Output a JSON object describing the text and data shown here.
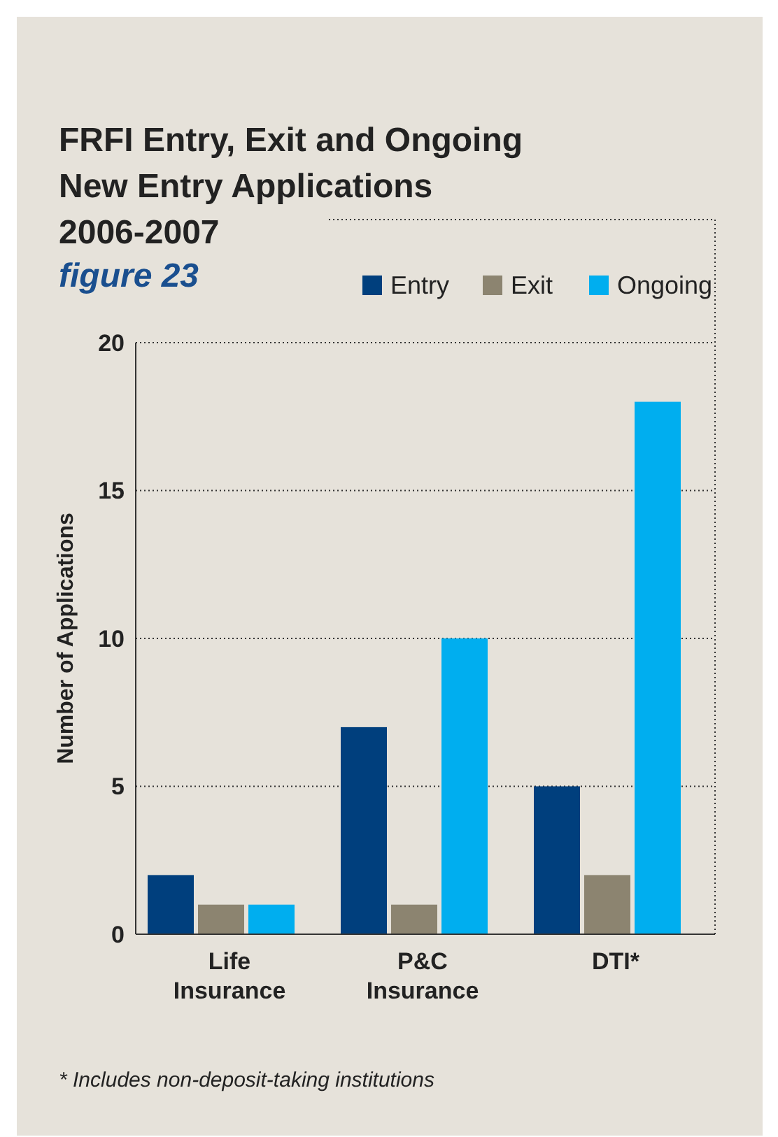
{
  "chart_data": {
    "type": "bar",
    "title": "FRFI Entry, Exit and Ongoing New Entry Applications 2006-2007",
    "subtitle": "figure 23",
    "ylabel": "Number of Applications",
    "categories": [
      "Life Insurance",
      "P&C Insurance",
      "DTI*"
    ],
    "series": [
      {
        "name": "Entry",
        "color": "#003f7d",
        "values": [
          2,
          7,
          5
        ]
      },
      {
        "name": "Exit",
        "color": "#8c8470",
        "values": [
          1,
          1,
          2
        ]
      },
      {
        "name": "Ongoing",
        "color": "#00aeef",
        "values": [
          1,
          10,
          18
        ]
      }
    ],
    "ylim": [
      0,
      20
    ],
    "yticks": [
      0,
      5,
      10,
      15,
      20
    ],
    "grid": "y",
    "legend": "top right",
    "annotations": [
      "* Includes non-deposit-taking institutions"
    ]
  }
}
